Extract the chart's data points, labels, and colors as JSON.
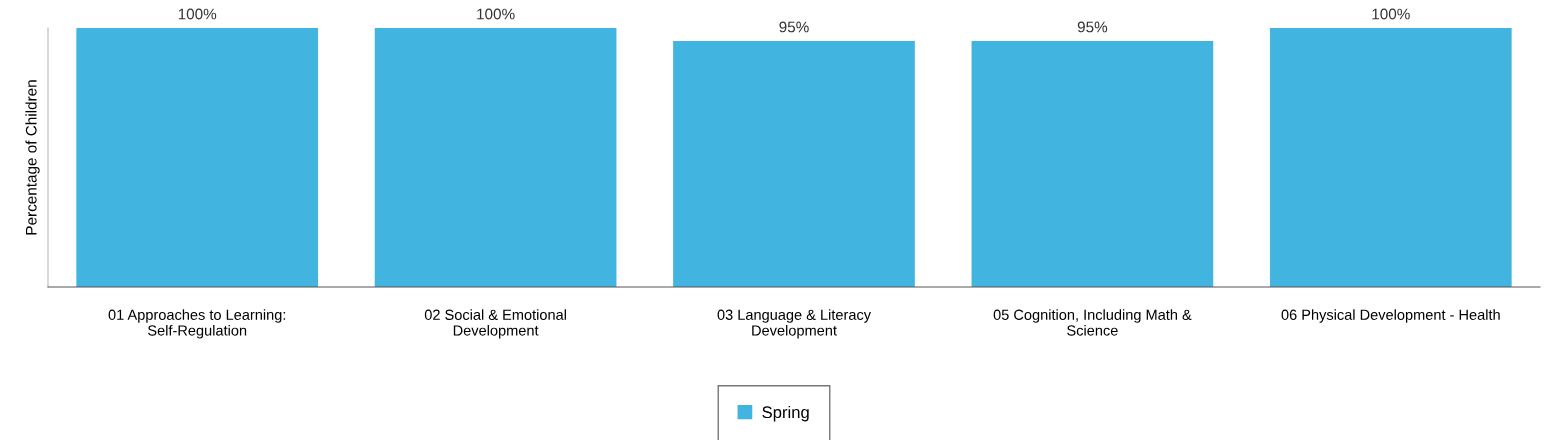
{
  "chart_data": {
    "type": "bar",
    "ylabel": "Percentage of Children",
    "categories": [
      "01 Approaches to Learning: Self-Regulation",
      "02 Social & Emotional Development",
      "03 Language & Literacy Development",
      "05 Cognition, Including Math & Science",
      "06 Physical Development - Health"
    ],
    "series": [
      {
        "name": "Spring",
        "color": "#41b4e0",
        "values": [
          100,
          100,
          95,
          95,
          100
        ],
        "value_labels": [
          "100%",
          "100%",
          "95%",
          "95%",
          "100%"
        ]
      }
    ],
    "legend": "bottom",
    "grid": false,
    "tick_labels": "x"
  }
}
